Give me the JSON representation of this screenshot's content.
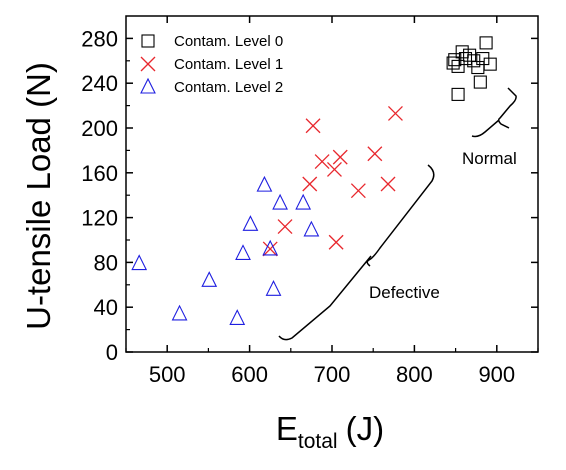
{
  "chart_data": {
    "type": "scatter",
    "title": "",
    "xlabel": "E",
    "xlabel_subscript": "total",
    "xlabel_unit": "(J)",
    "ylabel": "U-tensile Load (N)",
    "xlim": [
      450,
      950
    ],
    "ylim": [
      0,
      300
    ],
    "xticks": [
      500,
      600,
      700,
      800,
      900
    ],
    "yticks": [
      0,
      40,
      80,
      120,
      160,
      200,
      240,
      280
    ],
    "grid": false,
    "legend_position": "top-left",
    "series": [
      {
        "name": "Contam. Level 0",
        "marker": "square",
        "color": "#000000",
        "points": [
          [
            847,
            258
          ],
          [
            853,
            255
          ],
          [
            858,
            268
          ],
          [
            862,
            262
          ],
          [
            867,
            265
          ],
          [
            872,
            260
          ],
          [
            877,
            254
          ],
          [
            883,
            262
          ],
          [
            887,
            276
          ],
          [
            892,
            257
          ],
          [
            880,
            241
          ],
          [
            853,
            230
          ],
          [
            849,
            261
          ]
        ]
      },
      {
        "name": "Contam. Level 1",
        "marker": "x",
        "color": "#e8282e",
        "points": [
          [
            625,
            92
          ],
          [
            643,
            112
          ],
          [
            673,
            150
          ],
          [
            677,
            202
          ],
          [
            688,
            170
          ],
          [
            703,
            163
          ],
          [
            710,
            174
          ],
          [
            705,
            98
          ],
          [
            732,
            144
          ],
          [
            752,
            177
          ],
          [
            768,
            150
          ],
          [
            777,
            213
          ]
        ]
      },
      {
        "name": "Contam. Level 2",
        "marker": "triangle",
        "color": "#1e1ee0",
        "points": [
          [
            466,
            79
          ],
          [
            515,
            34
          ],
          [
            551,
            64
          ],
          [
            585,
            30
          ],
          [
            592,
            88
          ],
          [
            601,
            114
          ],
          [
            618,
            149
          ],
          [
            625,
            92
          ],
          [
            629,
            56
          ],
          [
            637,
            133
          ],
          [
            665,
            133
          ],
          [
            675,
            109
          ]
        ]
      }
    ],
    "annotations": [
      {
        "text": "Normal",
        "x": 905,
        "y": 178
      },
      {
        "text": "Defective",
        "x": 820,
        "y": 52
      }
    ]
  }
}
